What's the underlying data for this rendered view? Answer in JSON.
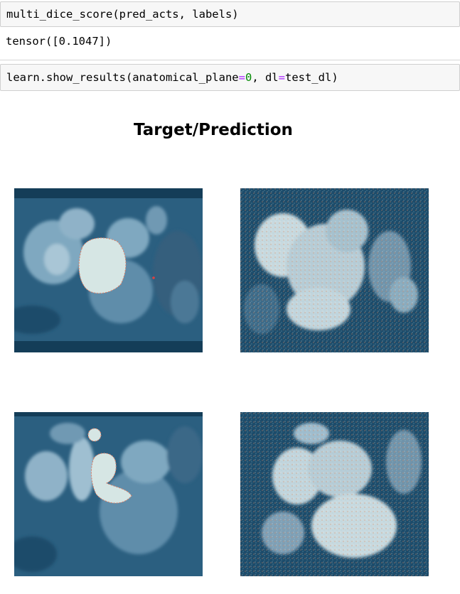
{
  "cells": [
    {
      "code": {
        "func": "multi_dice_score",
        "args": "(pred_acts, labels)"
      },
      "output": "tensor([0.1047])"
    },
    {
      "code": {
        "call": "learn.show_results(anatomical_plane",
        "eq1": "=",
        "plane_value": "0",
        "sep": ", dl",
        "eq2": "=",
        "dl_value": "test_dl",
        "close": ")"
      }
    }
  ],
  "figure": {
    "title": "Target/Prediction",
    "panels": [
      {
        "role": "target",
        "row": 0,
        "icon": "mri-slice-icon"
      },
      {
        "role": "prediction",
        "row": 0,
        "icon": "mri-slice-icon"
      },
      {
        "role": "target",
        "row": 1,
        "icon": "mri-slice-icon"
      },
      {
        "role": "prediction",
        "row": 1,
        "icon": "mri-slice-icon"
      }
    ]
  },
  "colors": {
    "cell_bg": "#f7f7f7",
    "cell_border": "#cfcfcf",
    "number": "#008800",
    "operator": "#aa22ff",
    "scan_bg": "#1b4968",
    "mask_fill": "#d6e6e4",
    "mask_edge": "#e07a5f"
  }
}
